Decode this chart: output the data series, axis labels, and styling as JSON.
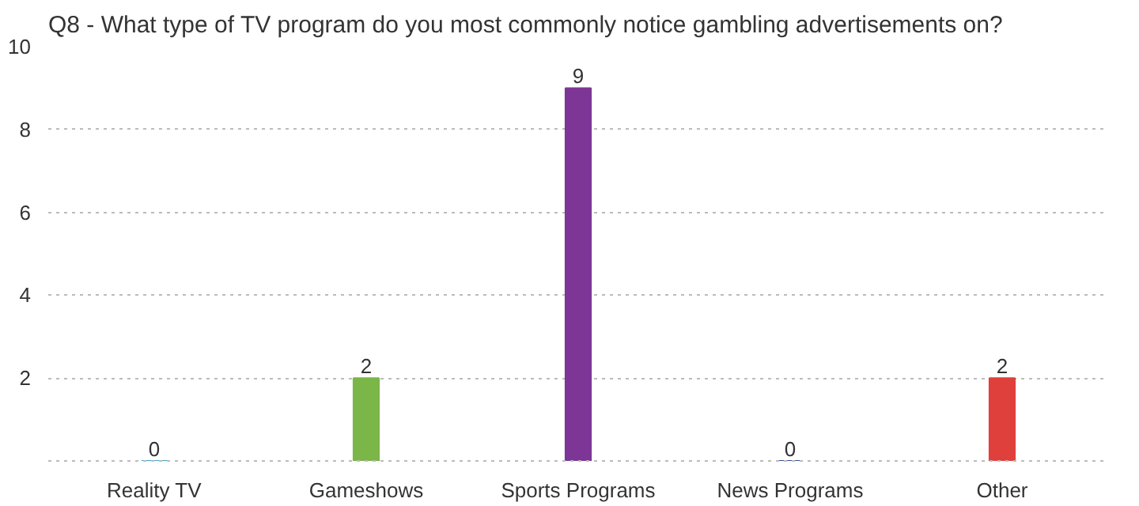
{
  "chart_data": {
    "type": "bar",
    "title": "Q8 - What type of TV program do you most commonly notice gambling advertisements on?",
    "categories": [
      "Reality TV",
      "Gameshows",
      "Sports Programs",
      "News Programs",
      "Other"
    ],
    "values": [
      0,
      2,
      9,
      0,
      2
    ],
    "colors": [
      "#3fa3c4",
      "#7ab648",
      "#7d3596",
      "#2d4f9e",
      "#e0403c"
    ],
    "ylim": [
      0,
      10
    ],
    "yticks": [
      2,
      4,
      6,
      8,
      10
    ],
    "grid": "y",
    "data_labels": true
  }
}
